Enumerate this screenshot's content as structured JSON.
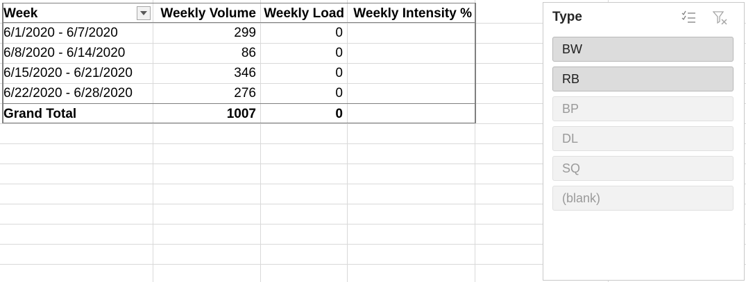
{
  "pivot": {
    "headers": {
      "week": "Week",
      "volume": "Weekly Volume",
      "load": "Weekly Load",
      "intensity": "Weekly Intensity %"
    },
    "rows": [
      {
        "week": "6/1/2020 - 6/7/2020",
        "volume": "299",
        "load": "0",
        "intensity": ""
      },
      {
        "week": "6/8/2020 - 6/14/2020",
        "volume": "86",
        "load": "0",
        "intensity": ""
      },
      {
        "week": "6/15/2020 - 6/21/2020",
        "volume": "346",
        "load": "0",
        "intensity": ""
      },
      {
        "week": "6/22/2020 - 6/28/2020",
        "volume": "276",
        "load": "0",
        "intensity": ""
      }
    ],
    "total": {
      "label": "Grand Total",
      "volume": "1007",
      "load": "0",
      "intensity": ""
    }
  },
  "slicer": {
    "title": "Type",
    "items": [
      {
        "label": "BW",
        "selected": true
      },
      {
        "label": "RB",
        "selected": true
      },
      {
        "label": "BP",
        "selected": false
      },
      {
        "label": "DL",
        "selected": false
      },
      {
        "label": "SQ",
        "selected": false
      },
      {
        "label": "(blank)",
        "selected": false
      }
    ],
    "icons": {
      "multiselect": "multi-select-icon",
      "clear": "clear-filter-icon"
    }
  },
  "colors": {
    "selected_item": "#dcdcdc",
    "unselected_item": "#f2f2f2",
    "table_border": "#7f7f7f"
  }
}
